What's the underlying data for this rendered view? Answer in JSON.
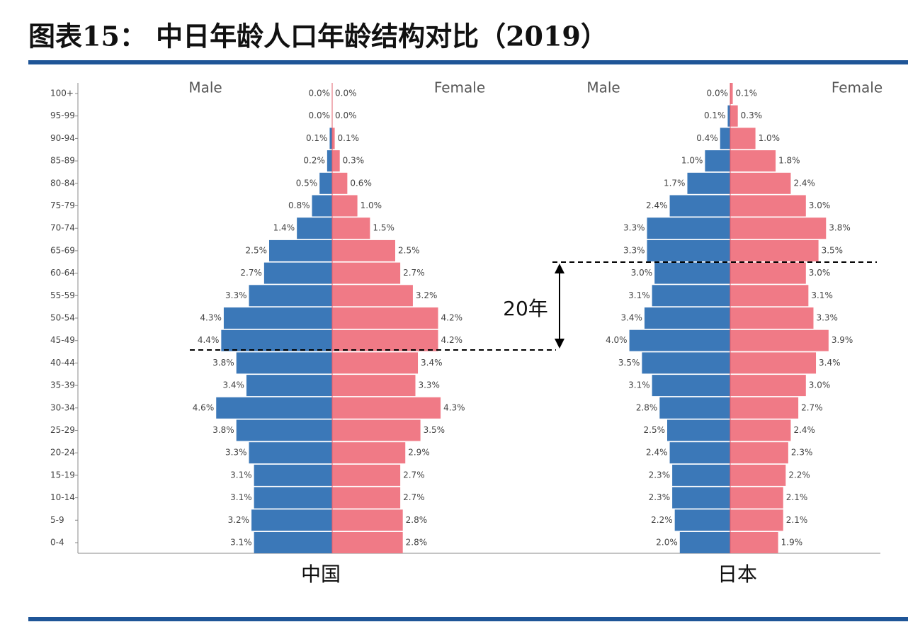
{
  "title": "图表15：  中日年龄人口年龄结构对比（2019）",
  "annotation": "20年",
  "chart_data": [
    {
      "type": "pyramid",
      "title": "中国",
      "categories": [
        "100+",
        "95-99",
        "90-94",
        "85-89",
        "80-84",
        "75-79",
        "70-74",
        "65-69",
        "60-64",
        "55-59",
        "50-54",
        "45-49",
        "40-44",
        "35-39",
        "30-34",
        "25-29",
        "20-24",
        "15-19",
        "10-14",
        "5-9",
        "0-4"
      ],
      "series": [
        {
          "name": "Male",
          "color": "#3b78b8",
          "side": "left",
          "values": [
            0.0,
            0.0,
            0.1,
            0.2,
            0.5,
            0.8,
            1.4,
            2.5,
            2.7,
            3.3,
            4.3,
            4.4,
            3.8,
            3.4,
            4.6,
            3.8,
            3.3,
            3.1,
            3.1,
            3.2,
            3.1
          ],
          "value_labels": [
            "0.0%",
            "0.0%",
            "0.1%",
            "0.2%",
            "0.5%",
            "0.8%",
            "1.4%",
            "2.5%",
            "2.7%",
            "3.3%",
            "4.3%",
            "4.4%",
            "3.8%",
            "3.4%",
            "4.6%",
            "3.8%",
            "3.3%",
            "3.1%",
            "3.1%",
            "3.2%",
            "3.1%"
          ]
        },
        {
          "name": "Female",
          "color": "#f07a86",
          "side": "right",
          "values": [
            0.0,
            0.0,
            0.1,
            0.3,
            0.6,
            1.0,
            1.5,
            2.5,
            2.7,
            3.2,
            4.2,
            4.2,
            3.4,
            3.3,
            4.3,
            3.5,
            2.9,
            2.7,
            2.7,
            2.8,
            2.8
          ],
          "value_labels": [
            "0.0%",
            "0.0%",
            "0.1%",
            "0.3%",
            "0.6%",
            "1.0%",
            "1.5%",
            "2.5%",
            "2.7%",
            "3.2%",
            "4.2%",
            "4.2%",
            "3.4%",
            "3.3%",
            "4.3%",
            "3.5%",
            "2.9%",
            "2.7%",
            "2.7%",
            "2.8%",
            "2.8%"
          ]
        }
      ]
    },
    {
      "type": "pyramid",
      "title": "日本",
      "series": [
        {
          "name": "Male",
          "color": "#3b78b8",
          "side": "left",
          "values": [
            0.0,
            0.1,
            0.4,
            1.0,
            1.7,
            2.4,
            3.3,
            3.3,
            3.0,
            3.1,
            3.4,
            4.0,
            3.5,
            3.1,
            2.8,
            2.5,
            2.4,
            2.3,
            2.3,
            2.2,
            2.0
          ],
          "value_labels": [
            "0.0%",
            "0.1%",
            "0.4%",
            "1.0%",
            "1.7%",
            "2.4%",
            "3.3%",
            "3.3%",
            "3.0%",
            "3.1%",
            "3.4%",
            "4.0%",
            "3.5%",
            "3.1%",
            "2.8%",
            "2.5%",
            "2.4%",
            "2.3%",
            "2.3%",
            "2.2%",
            "2.0%"
          ]
        },
        {
          "name": "Female",
          "color": "#f07a86",
          "side": "right",
          "values": [
            0.1,
            0.3,
            1.0,
            1.8,
            2.4,
            3.0,
            3.8,
            3.5,
            3.0,
            3.1,
            3.3,
            3.9,
            3.4,
            3.0,
            2.7,
            2.4,
            2.3,
            2.2,
            2.1,
            2.1,
            1.9
          ],
          "value_labels": [
            "0.1%",
            "0.3%",
            "1.0%",
            "1.8%",
            "2.4%",
            "3.0%",
            "3.8%",
            "3.5%",
            "3.0%",
            "3.1%",
            "3.3%",
            "3.9%",
            "3.4%",
            "3.0%",
            "2.7%",
            "2.4%",
            "2.3%",
            "2.2%",
            "2.1%",
            "2.1%",
            "1.9%"
          ]
        }
      ]
    }
  ]
}
